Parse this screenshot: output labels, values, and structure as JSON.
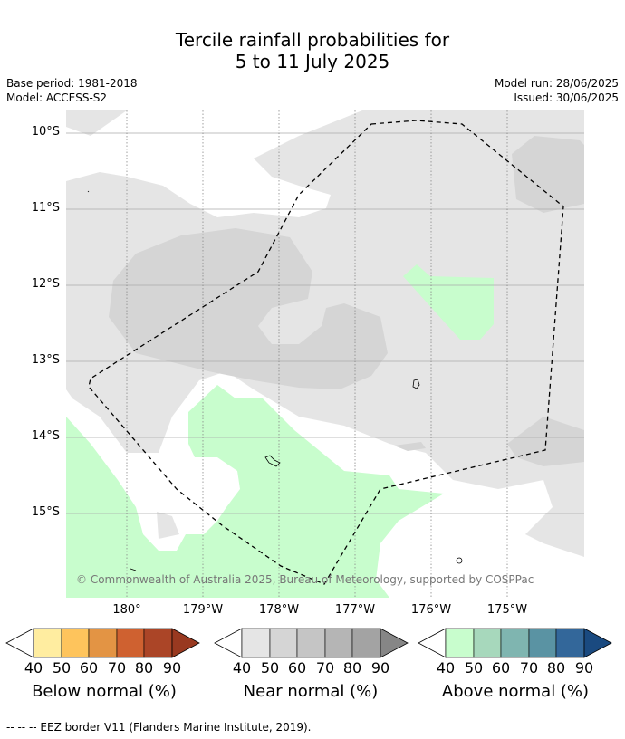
{
  "title_line1": "Tercile rainfall probabilities for",
  "title_line2": "5 to 11 July 2025",
  "base_period": "Base period: 1981-2018",
  "model": "Model: ACCESS-S2",
  "model_run": "Model run: 28/06/2025",
  "issued": "Issued: 30/06/2025",
  "map": {
    "lat_labels": [
      "10°S",
      "11°S",
      "12°S",
      "13°S",
      "14°S",
      "15°S"
    ],
    "lon_labels": [
      "180°",
      "179°W",
      "178°W",
      "177°W",
      "176°W",
      "175°W"
    ],
    "copyright": "© Commonwealth of Australia 2025, Bureau of Meteorology, supported by COSPPac"
  },
  "legend": {
    "below": {
      "title": "Below normal (%)",
      "ticks": [
        "40",
        "50",
        "60",
        "70",
        "80",
        "90"
      ],
      "colors": [
        "#ffeda0",
        "#fec45c",
        "#e39444",
        "#cf6130",
        "#ab4527",
        "#993920"
      ]
    },
    "near": {
      "title": "Near normal (%)",
      "ticks": [
        "40",
        "50",
        "60",
        "70",
        "80",
        "90"
      ],
      "colors": [
        "#e5e5e5",
        "#d5d5d5",
        "#c5c5c5",
        "#b5b5b5",
        "#a3a3a3",
        "#868686"
      ]
    },
    "above": {
      "title": "Above normal (%)",
      "ticks": [
        "40",
        "50",
        "60",
        "70",
        "80",
        "90"
      ],
      "colors": [
        "#c8fdcd",
        "#a7d8bc",
        "#7fb5b0",
        "#5a93a3",
        "#33679a",
        "#1a4a80"
      ]
    }
  },
  "footer": "--  --  -- EEZ border V11 (Flanders Marine Institute, 2019)."
}
